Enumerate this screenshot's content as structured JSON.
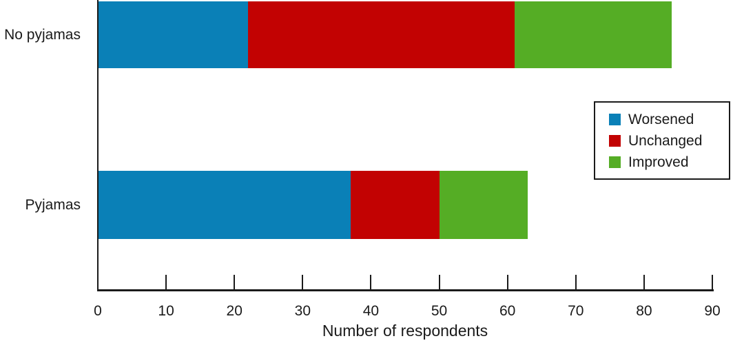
{
  "chart_data": {
    "type": "bar",
    "orientation": "horizontal",
    "stacked": true,
    "title": "",
    "categories": [
      "No pyjamas",
      "Pyjamas"
    ],
    "series": [
      {
        "name": "Worsened",
        "color": "#0a80b7",
        "values": [
          22,
          37
        ]
      },
      {
        "name": "Unchanged",
        "color": "#c20202",
        "values": [
          39,
          13
        ]
      },
      {
        "name": "Improved",
        "color": "#55ad25",
        "values": [
          23,
          13
        ]
      }
    ],
    "xlabel": "Number of respondents",
    "ylabel": "",
    "xlim": [
      0,
      90
    ],
    "xticks": [
      0,
      10,
      20,
      30,
      40,
      50,
      60,
      70,
      80,
      90
    ],
    "legend_position": "right",
    "grid": false
  },
  "colors": {
    "axis": "#1a1a1a",
    "text": "#1a1a1a",
    "background": "#ffffff"
  }
}
